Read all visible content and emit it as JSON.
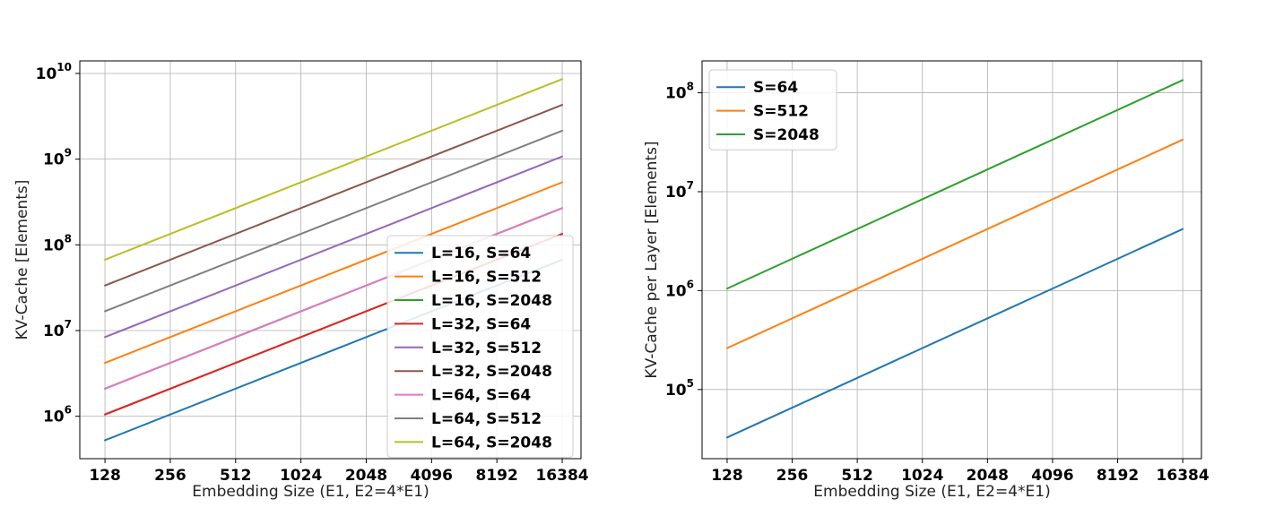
{
  "chart_data": [
    {
      "type": "line",
      "xscale": "log2",
      "yscale": "log10",
      "x": [
        128,
        256,
        512,
        1024,
        2048,
        4096,
        8192,
        16384
      ],
      "xlabel": "Embedding Size (E1, E2=4*E1)",
      "ylabel": "KV-Cache [Elements]",
      "xlim": [
        98,
        20000
      ],
      "ylim": [
        320000,
        14000000000
      ],
      "xticks": [
        "128",
        "256",
        "512",
        "1024",
        "2048",
        "4096",
        "8192",
        "16384"
      ],
      "ytick_values": [
        1000000,
        10000000,
        100000000,
        1000000000,
        10000000000
      ],
      "yticks": [
        {
          "base": "10",
          "exp": "6"
        },
        {
          "base": "10",
          "exp": "7"
        },
        {
          "base": "10",
          "exp": "8"
        },
        {
          "base": "10",
          "exp": "9"
        },
        {
          "base": "10",
          "exp": "10"
        }
      ],
      "grid": true,
      "legend_position": "lower-right",
      "series": [
        {
          "name": "L=16, S=64",
          "color": "#1f77b4",
          "start": 524288,
          "end": 67108864
        },
        {
          "name": "L=16, S=512",
          "color": "#ff7f0e",
          "start": 1048576,
          "end": 134217728
        },
        {
          "name": "L=16, S=2048",
          "color": "#2ca02c",
          "start": 2097152,
          "end": 268435456
        },
        {
          "name": "L=32, S=64",
          "color": "#d62728",
          "start": 1048576,
          "end": 134217728
        },
        {
          "name": "L=32, S=512",
          "color": "#9467bd",
          "start": 8388608,
          "end": 1073741824
        },
        {
          "name": "L=32, S=2048",
          "color": "#8c564b",
          "start": 33554432,
          "end": 4294967296
        },
        {
          "name": "L=64, S=64",
          "color": "#e377c2",
          "start": 2097152,
          "end": 268435456
        },
        {
          "name": "L=64, S=512",
          "color": "#7f7f7f",
          "start": 16777216,
          "end": 2147483648
        },
        {
          "name": "L=64, S=2048",
          "color": "#bcbd22",
          "start": 67108864,
          "end": 8589934592
        }
      ],
      "extra_lines": [
        {
          "color": "#ff7f0e",
          "start": 4194304,
          "end": 536870912
        }
      ]
    },
    {
      "type": "line",
      "xscale": "log2",
      "yscale": "log10",
      "x": [
        128,
        256,
        512,
        1024,
        2048,
        4096,
        8192,
        16384
      ],
      "xlabel": "Embedding Size (E1, E2=4*E1)",
      "ylabel": "KV-Cache per Layer [Elements]",
      "xlim": [
        98,
        20000
      ],
      "ylim": [
        20000,
        210000000
      ],
      "xticks": [
        "128",
        "256",
        "512",
        "1024",
        "2048",
        "4096",
        "8192",
        "16384"
      ],
      "ytick_values": [
        100000,
        1000000,
        10000000,
        100000000
      ],
      "yticks": [
        {
          "base": "10",
          "exp": "5"
        },
        {
          "base": "10",
          "exp": "6"
        },
        {
          "base": "10",
          "exp": "7"
        },
        {
          "base": "10",
          "exp": "8"
        }
      ],
      "grid": true,
      "legend_position": "upper-left",
      "series": [
        {
          "name": "S=64",
          "color": "#1f77b4",
          "start": 32768,
          "end": 4194304
        },
        {
          "name": "S=512",
          "color": "#ff7f0e",
          "start": 262144,
          "end": 33554432
        },
        {
          "name": "S=2048",
          "color": "#2ca02c",
          "start": 1048576,
          "end": 134217728
        }
      ],
      "extra_lines": []
    }
  ]
}
